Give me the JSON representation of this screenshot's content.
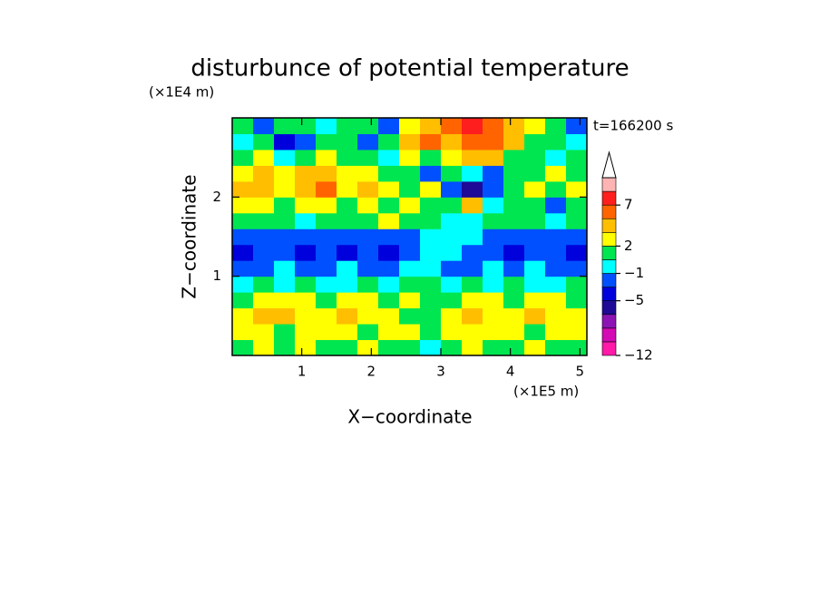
{
  "chart_data": {
    "type": "contour",
    "title": "disturbunce of potential temperature",
    "x_label": "X−coordinate",
    "y_label": "Z−coordinate",
    "x_unit": "(×1E5 m)",
    "y_unit": "(×1E4 m)",
    "time_label": "t=166200 s",
    "xlim": [
      0,
      5.1
    ],
    "ylim": [
      0,
      3
    ],
    "xticks": [
      1,
      2,
      3,
      4,
      5
    ],
    "yticks": [
      1,
      2
    ],
    "z": [
      [
        1,
        2.5,
        1,
        2.5,
        1,
        1,
        2.5,
        1,
        1,
        -0.5,
        1,
        2.5,
        1,
        1,
        2.5,
        1,
        1
      ],
      [
        2.5,
        2.5,
        1,
        2.5,
        2.5,
        2.5,
        1,
        2.5,
        2.5,
        1,
        2.5,
        2.5,
        2.5,
        2.5,
        1,
        2.5,
        2.5
      ],
      [
        2.5,
        4,
        4,
        2.5,
        2.5,
        4,
        2.5,
        2.5,
        1,
        1,
        2.5,
        4,
        2.5,
        2.5,
        4,
        2.5,
        2.5
      ],
      [
        1,
        2.5,
        2.5,
        2.5,
        1,
        2.5,
        2.5,
        1,
        2.5,
        1,
        1,
        2.5,
        2.5,
        1,
        2.5,
        2.5,
        1
      ],
      [
        -0.5,
        1,
        -0.5,
        1,
        -0.5,
        -0.5,
        1,
        -0.5,
        1,
        1,
        -0.5,
        1,
        -0.5,
        1,
        -0.5,
        -0.5,
        1
      ],
      [
        -2,
        -2,
        -0.5,
        -2,
        -2,
        -0.5,
        -2,
        -2,
        -0.5,
        -0.5,
        -2,
        -2,
        -0.5,
        -2,
        -0.5,
        -2,
        -2
      ],
      [
        -4,
        -2,
        -2,
        -4,
        -2,
        -4,
        -2,
        -4,
        -2,
        -0.5,
        -0.5,
        -2,
        -2,
        -4,
        -2,
        -2,
        -4
      ],
      [
        -2,
        -2,
        -2,
        -2,
        -2,
        -2,
        -2,
        -2,
        -2,
        -0.5,
        -0.5,
        -0.5,
        -2,
        -2,
        -2,
        -2,
        -2
      ],
      [
        1,
        1,
        1,
        -0.5,
        1,
        1,
        1,
        2.5,
        1,
        1,
        -0.5,
        -0.5,
        1,
        1,
        1,
        -0.5,
        1
      ],
      [
        2.5,
        2.5,
        1,
        2.5,
        2.5,
        1,
        2.5,
        1,
        2.5,
        1,
        1,
        4,
        -0.5,
        1,
        1,
        -2,
        1
      ],
      [
        4,
        4,
        2.5,
        4,
        6,
        2.5,
        4,
        2.5,
        1,
        2.5,
        -2,
        -5.5,
        -2,
        1,
        2.5,
        1,
        2.5
      ],
      [
        2.5,
        4,
        2.5,
        4,
        4,
        2.5,
        2.5,
        1,
        1,
        -2,
        1,
        -0.5,
        -2,
        1,
        1,
        2.5,
        1
      ],
      [
        1,
        2.5,
        -0.5,
        1,
        2.5,
        1,
        1,
        -0.5,
        2.5,
        1,
        2.5,
        4,
        4,
        1,
        1,
        -0.5,
        1
      ],
      [
        -0.5,
        1,
        -4,
        -2,
        1,
        1,
        -2,
        1,
        4,
        6,
        4,
        6,
        6,
        4,
        1,
        1,
        -0.5
      ],
      [
        1,
        -2,
        1,
        1,
        -0.5,
        1,
        1,
        -2,
        2.5,
        4,
        6,
        8,
        6,
        4,
        2.5,
        1,
        -2
      ]
    ],
    "levels": [
      -12,
      -10,
      -8,
      -6,
      -5,
      -3,
      -1,
      0,
      2,
      3,
      5,
      7,
      9,
      11
    ],
    "colors": [
      "#ff1aa8",
      "#d40ab4",
      "#8c14b4",
      "#1e0a96",
      "#0000dc",
      "#0050ff",
      "#00ffff",
      "#00e650",
      "#ffff00",
      "#ffbe00",
      "#ff6400",
      "#ff1e1e",
      "#ffb4b4"
    ],
    "colorbar_ticks": [
      {
        "value": -12,
        "label": "−12"
      },
      {
        "value": -5,
        "label": "−5"
      },
      {
        "value": -1,
        "label": "−1"
      },
      2,
      7
    ]
  }
}
